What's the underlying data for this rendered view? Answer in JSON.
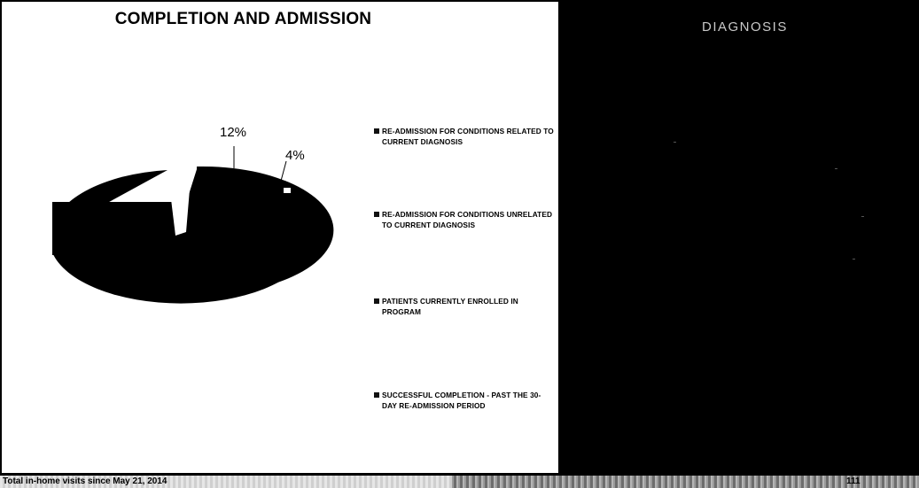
{
  "chart_data": {
    "type": "pie",
    "title": "COMPLETION AND ADMISSION",
    "slices": [
      {
        "label": "RE-ADMISSION FOR CONDITIONS RELATED TO CURRENT DIAGNOSIS",
        "value": null
      },
      {
        "label": "RE-ADMISSION FOR CONDITIONS UNRELATED TO CURRENT DIAGNOSIS",
        "value": 4,
        "value_label": "4%"
      },
      {
        "label": "PATIENTS CURRENTLY ENROLLED IN PROGRAM",
        "value": 12,
        "value_label": "12%"
      },
      {
        "label": "SUCCESSFUL COMPLETION - PAST THE 30-DAY RE-ADMISSION PERIOD",
        "value": null
      }
    ],
    "legend_position": "right",
    "style": "3d-exploded"
  },
  "right_panel": {
    "title": "DIAGNOSIS"
  },
  "footer": {
    "text": "Total in-home visits since May 21, 2014",
    "page": "111"
  },
  "colors": {
    "slices": "#000000",
    "panel_right": "#000000",
    "panel_right_text": "#c9c9c9"
  }
}
